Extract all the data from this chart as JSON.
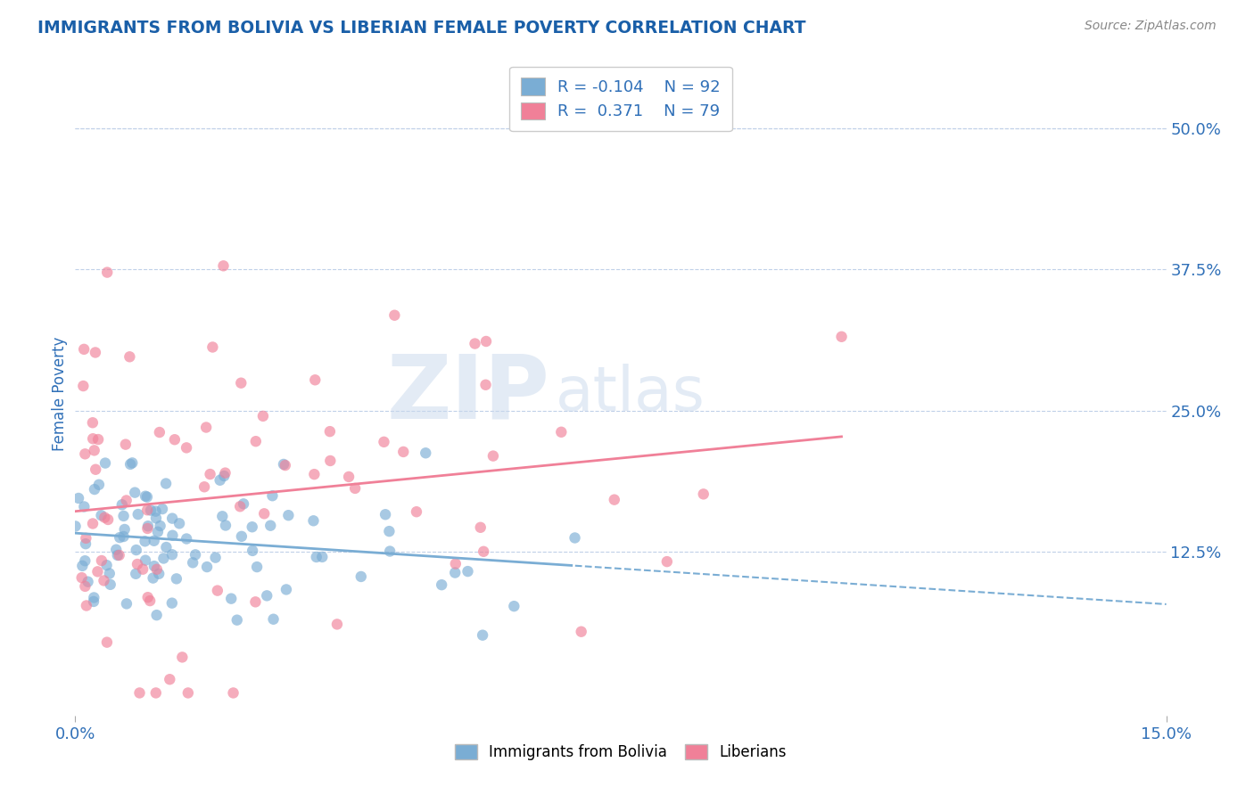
{
  "title": "IMMIGRANTS FROM BOLIVIA VS LIBERIAN FEMALE POVERTY CORRELATION CHART",
  "source_text": "Source: ZipAtlas.com",
  "ylabel": "Female Poverty",
  "xlim": [
    0.0,
    0.15
  ],
  "ylim": [
    -0.02,
    0.55
  ],
  "x_ticks": [
    0.0,
    0.15
  ],
  "x_tick_labels": [
    "0.0%",
    "15.0%"
  ],
  "y_tick_labels": [
    "12.5%",
    "25.0%",
    "37.5%",
    "50.0%"
  ],
  "y_ticks": [
    0.125,
    0.25,
    0.375,
    0.5
  ],
  "bolivia_color": "#7aadd4",
  "liberia_color": "#f08098",
  "bolivia_R": -0.104,
  "bolivia_N": 92,
  "liberia_R": 0.371,
  "liberia_N": 79,
  "legend_label_1": "Immigrants from Bolivia",
  "legend_label_2": "Liberians",
  "watermark_ZIP": "ZIP",
  "watermark_atlas": "atlas",
  "background_color": "#ffffff",
  "grid_color": "#c0d0e8",
  "title_color": "#1a5fa8",
  "axis_label_color": "#3070b8",
  "scatter_alpha": 0.65,
  "scatter_size": 80
}
